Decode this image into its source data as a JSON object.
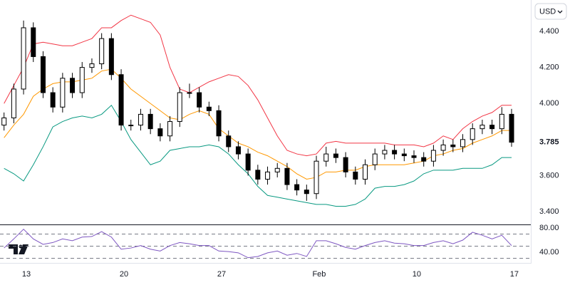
{
  "chart_data": {
    "type": "candlestick",
    "currency": "USD",
    "x": [
      11.4,
      12.1,
      12.8,
      13.5,
      14.2,
      14.9,
      15.6,
      16.3,
      17.0,
      17.7,
      18.4,
      19.1,
      19.8,
      20.5,
      21.2,
      21.9,
      22.6,
      23.3,
      24.0,
      24.7,
      25.4,
      26.1,
      26.8,
      27.5,
      28.2,
      28.9,
      29.6,
      30.3,
      31.0,
      31.7,
      32.4,
      33.1,
      33.8,
      34.5,
      35.2,
      35.9,
      36.6,
      37.3,
      38.0,
      38.7,
      39.4,
      40.1,
      40.8,
      41.5,
      42.2,
      42.9,
      43.6,
      44.3,
      45.0,
      45.7,
      46.4,
      47.1,
      47.8
    ],
    "open": [
      3.88,
      3.92,
      4.08,
      4.42,
      4.26,
      4.06,
      3.98,
      4.14,
      4.06,
      4.2,
      4.22,
      4.36,
      4.16,
      3.88,
      3.88,
      3.94,
      3.86,
      3.82,
      3.9,
      4.06,
      4.06,
      3.98,
      3.96,
      3.82,
      3.76,
      3.72,
      3.63,
      3.58,
      3.62,
      3.64,
      3.55,
      3.52,
      3.5,
      3.68,
      3.72,
      3.7,
      3.62,
      3.58,
      3.66,
      3.72,
      3.74,
      3.72,
      3.71,
      3.7,
      3.68,
      3.74,
      3.77,
      3.76,
      3.8,
      3.86,
      3.88,
      3.86,
      3.94
    ],
    "high": [
      3.95,
      4.11,
      4.46,
      4.45,
      4.29,
      4.09,
      4.17,
      4.17,
      4.23,
      4.25,
      4.39,
      4.39,
      4.19,
      3.91,
      3.97,
      3.97,
      3.89,
      3.93,
      4.09,
      4.11,
      4.09,
      4.01,
      3.99,
      3.85,
      3.79,
      3.75,
      3.66,
      3.65,
      3.67,
      3.67,
      3.58,
      3.55,
      3.71,
      3.76,
      3.75,
      3.73,
      3.65,
      3.69,
      3.75,
      3.77,
      3.77,
      3.75,
      3.74,
      3.73,
      3.77,
      3.8,
      3.8,
      3.83,
      3.89,
      3.91,
      3.91,
      3.98,
      3.97
    ],
    "low": [
      3.85,
      3.89,
      4.05,
      4.23,
      4.03,
      3.95,
      3.95,
      4.03,
      4.03,
      4.17,
      4.19,
      4.13,
      3.85,
      3.85,
      3.85,
      3.83,
      3.79,
      3.79,
      3.87,
      4.03,
      3.95,
      3.93,
      3.79,
      3.73,
      3.69,
      3.6,
      3.55,
      3.55,
      3.59,
      3.52,
      3.49,
      3.46,
      3.47,
      3.65,
      3.67,
      3.59,
      3.55,
      3.55,
      3.63,
      3.69,
      3.69,
      3.68,
      3.67,
      3.65,
      3.65,
      3.71,
      3.73,
      3.73,
      3.77,
      3.83,
      3.83,
      3.83,
      3.76
    ],
    "close": [
      3.92,
      4.08,
      4.42,
      4.26,
      4.06,
      3.98,
      4.14,
      4.06,
      4.2,
      4.22,
      4.36,
      4.16,
      3.88,
      3.88,
      3.94,
      3.86,
      3.82,
      3.9,
      4.06,
      4.06,
      3.98,
      3.96,
      3.82,
      3.76,
      3.72,
      3.63,
      3.58,
      3.62,
      3.64,
      3.55,
      3.52,
      3.5,
      3.68,
      3.72,
      3.7,
      3.62,
      3.58,
      3.66,
      3.72,
      3.74,
      3.72,
      3.71,
      3.7,
      3.68,
      3.74,
      3.77,
      3.76,
      3.8,
      3.86,
      3.88,
      3.86,
      3.94,
      3.785
    ],
    "up_color": "#ffffff",
    "down_color": "#000000",
    "series": [
      {
        "color": "#f23645",
        "values": [
          4.0,
          4.1,
          4.2,
          4.33,
          4.34,
          4.33,
          4.32,
          4.32,
          4.34,
          4.36,
          4.42,
          4.42,
          4.46,
          4.49,
          4.47,
          4.45,
          4.38,
          4.2,
          4.08,
          4.06,
          4.09,
          4.12,
          4.14,
          4.16,
          4.15,
          4.1,
          4.02,
          3.92,
          3.82,
          3.74,
          3.72,
          3.71,
          3.72,
          3.78,
          3.79,
          3.78,
          3.78,
          3.78,
          3.78,
          3.78,
          3.77,
          3.77,
          3.77,
          3.76,
          3.78,
          3.82,
          3.8,
          3.86,
          3.9,
          3.93,
          3.95,
          3.99,
          3.99
        ]
      },
      {
        "color": "#ff9800",
        "values": [
          3.81,
          3.88,
          3.94,
          4.04,
          4.08,
          4.11,
          4.12,
          4.12,
          4.13,
          4.14,
          4.18,
          4.19,
          4.14,
          4.08,
          4.04,
          4.0,
          3.96,
          3.92,
          3.91,
          3.94,
          3.96,
          3.94,
          3.86,
          3.82,
          3.78,
          3.76,
          3.73,
          3.71,
          3.68,
          3.65,
          3.61,
          3.58,
          3.59,
          3.62,
          3.62,
          3.63,
          3.63,
          3.65,
          3.66,
          3.66,
          3.66,
          3.66,
          3.67,
          3.68,
          3.71,
          3.72,
          3.74,
          3.75,
          3.78,
          3.8,
          3.82,
          3.85,
          3.85
        ]
      },
      {
        "color": "#089981",
        "values": [
          3.64,
          3.61,
          3.57,
          3.66,
          3.76,
          3.87,
          3.9,
          3.92,
          3.93,
          3.92,
          3.94,
          3.99,
          3.9,
          3.8,
          3.73,
          3.66,
          3.68,
          3.74,
          3.75,
          3.76,
          3.76,
          3.77,
          3.76,
          3.72,
          3.66,
          3.61,
          3.54,
          3.49,
          3.48,
          3.47,
          3.46,
          3.45,
          3.44,
          3.44,
          3.43,
          3.43,
          3.44,
          3.47,
          3.53,
          3.54,
          3.54,
          3.55,
          3.57,
          3.61,
          3.63,
          3.63,
          3.63,
          3.64,
          3.64,
          3.64,
          3.66,
          3.7,
          3.7
        ]
      },
      {
        "color": "#7e57c2",
        "axis": "y2",
        "values": [
          47,
          62,
          78,
          62,
          53,
          56,
          62,
          59,
          65,
          66,
          74,
          65,
          45,
          47,
          51,
          45,
          42,
          51,
          56,
          54,
          51,
          51,
          42,
          41,
          39,
          31,
          33,
          39,
          42,
          35,
          38,
          33,
          59,
          59,
          54,
          48,
          45,
          51,
          56,
          59,
          55,
          54,
          51,
          51,
          56,
          59,
          54,
          60,
          73,
          68,
          62,
          68,
          51
        ]
      }
    ],
    "xlim": [
      11.11,
      49.18
    ],
    "xticks": [
      13,
      20,
      27,
      {
        "value": 34,
        "label": "Feb"
      },
      {
        "value": 41,
        "label": "10"
      },
      {
        "value": 48,
        "label": "17"
      }
    ],
    "ylim": [
      3.329,
      4.574
    ],
    "yticks": [
      {
        "value": 4.4,
        "label": "4.400"
      },
      {
        "value": 4.2,
        "label": "4.200"
      },
      {
        "value": 4.0,
        "label": "4.000"
      },
      {
        "value": 3.6,
        "label": "3.600"
      },
      {
        "value": 3.4,
        "label": "3.400"
      }
    ],
    "y2lim": [
      21.2,
      84.7
    ],
    "y2ticks": [
      {
        "value": 80,
        "label": "80.00"
      },
      {
        "value": 40,
        "label": "40.00"
      }
    ],
    "y2levels": [
      70,
      50,
      30
    ]
  }
}
